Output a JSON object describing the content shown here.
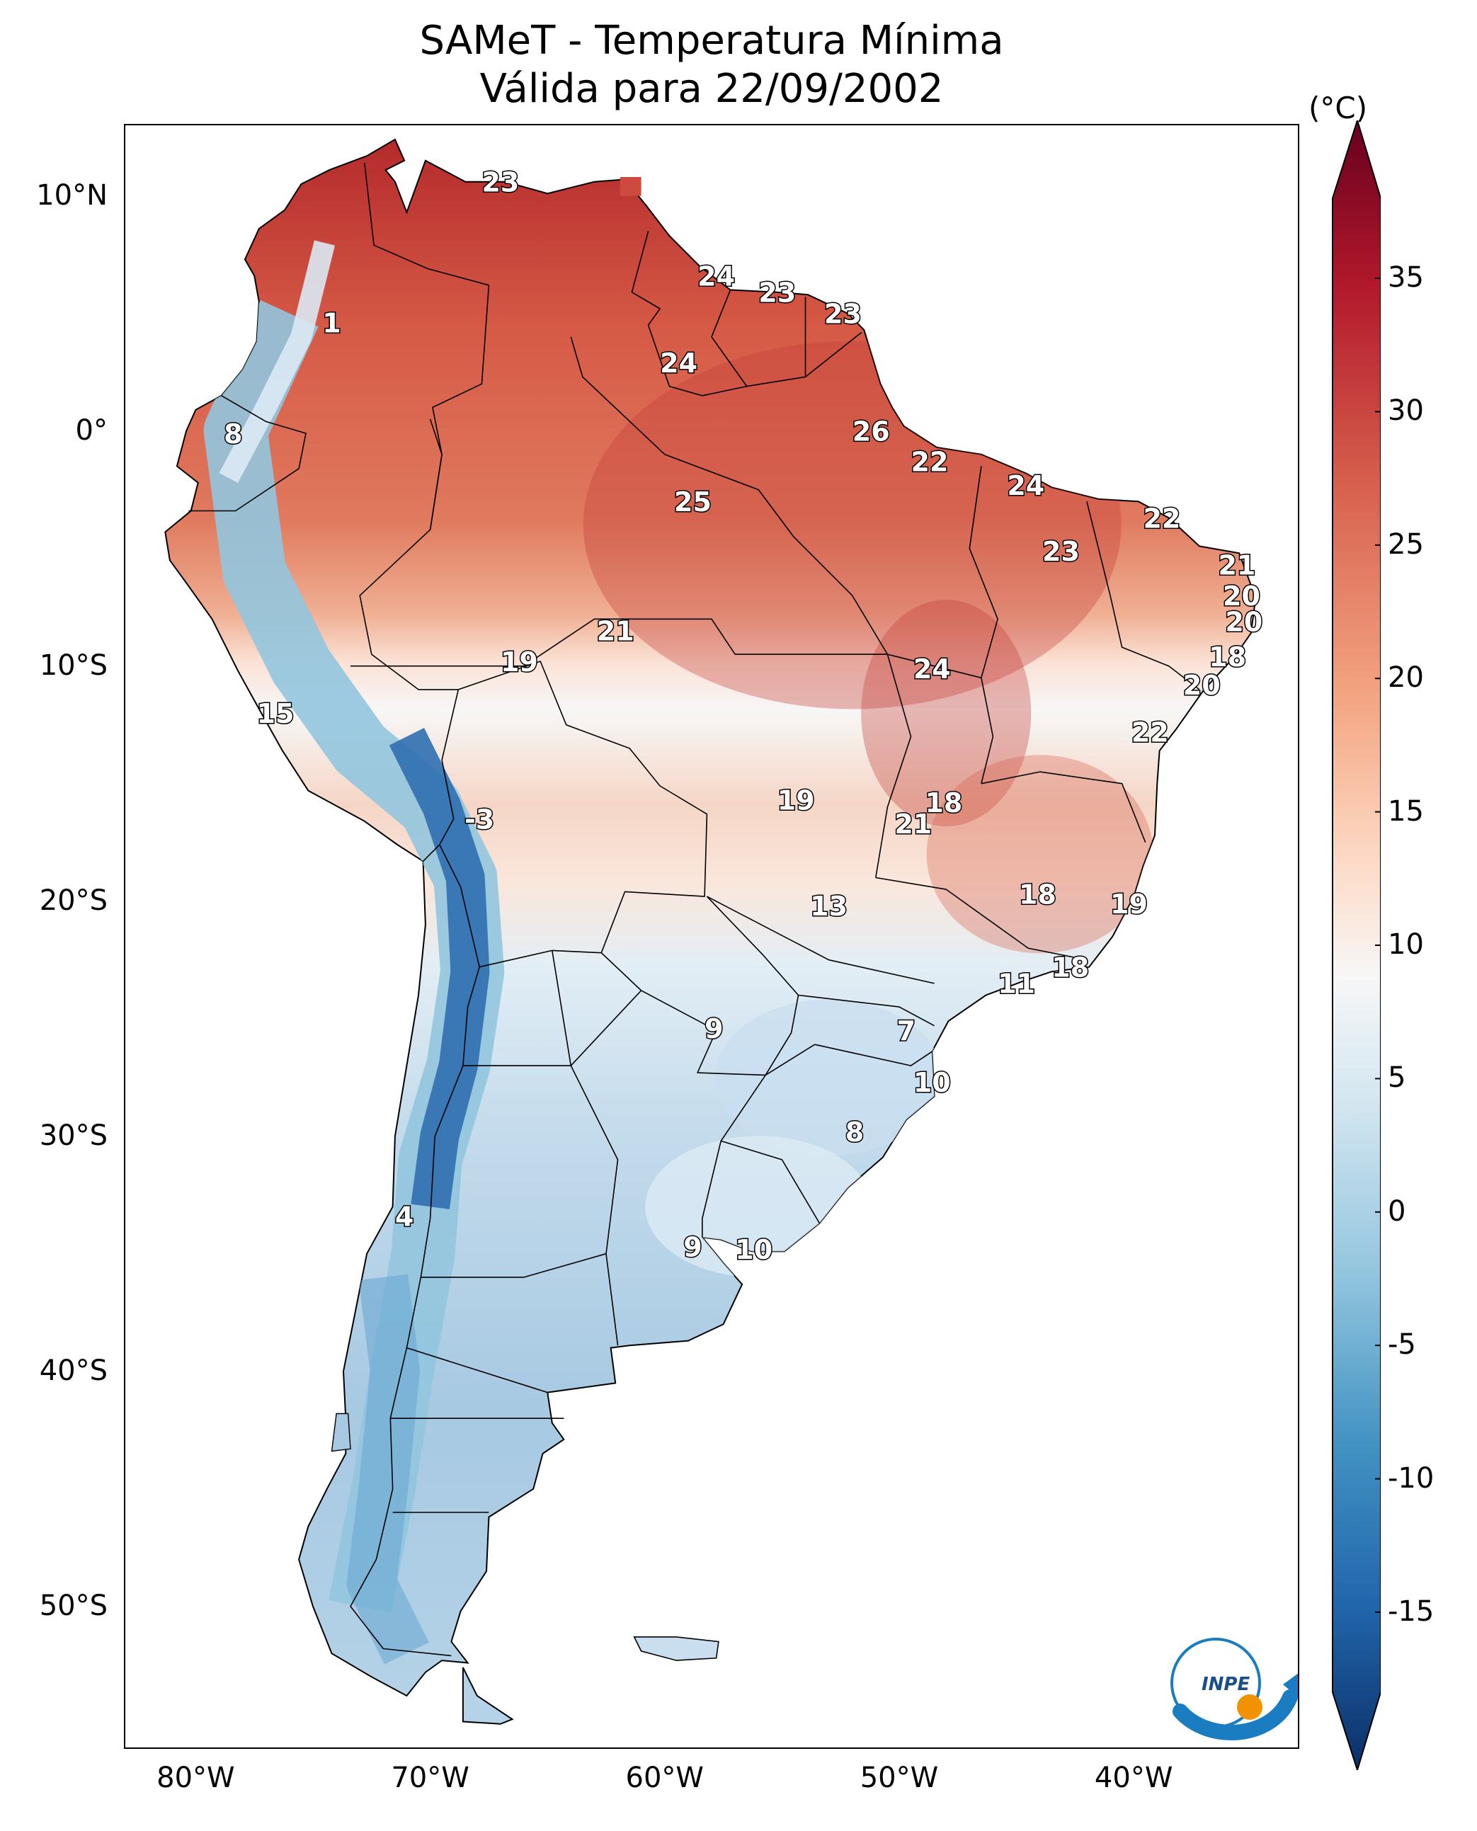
{
  "title": "SAMeT - Temperatura Mínima",
  "subtitle": "Válida para 22/09/2002",
  "axes": {
    "lat_ticks": [
      "10°N",
      "0°",
      "10°S",
      "20°S",
      "30°S",
      "40°S",
      "50°S"
    ],
    "lon_ticks": [
      "80°W",
      "70°W",
      "60°W",
      "50°W",
      "40°W"
    ],
    "lat_range": [
      -56,
      13
    ],
    "lon_range": [
      -83,
      -33
    ]
  },
  "colorbar": {
    "unit": "(°C)",
    "ticks": [
      "35",
      "30",
      "25",
      "20",
      "15",
      "10",
      "5",
      "0",
      "-5",
      "-10",
      "-15"
    ],
    "range": [
      -15,
      35
    ],
    "colormap": "RdBu_r",
    "colors": [
      "#0b2f66",
      "#2166ac",
      "#4393c3",
      "#92c5de",
      "#d1e5f0",
      "#f7f7f7",
      "#fddbc7",
      "#f4a582",
      "#d6604d",
      "#b2182b",
      "#67001f"
    ]
  },
  "station_labels": [
    {
      "text": "23",
      "lon": -67.0,
      "lat": 10.5
    },
    {
      "text": "24",
      "lon": -57.8,
      "lat": 6.5
    },
    {
      "text": "23",
      "lon": -55.2,
      "lat": 5.8
    },
    {
      "text": "23",
      "lon": -52.4,
      "lat": 4.9
    },
    {
      "text": "1",
      "lon": -74.2,
      "lat": 4.5
    },
    {
      "text": "24",
      "lon": -59.4,
      "lat": 2.8
    },
    {
      "text": "8",
      "lon": -78.4,
      "lat": -0.2
    },
    {
      "text": "26",
      "lon": -51.2,
      "lat": -0.1
    },
    {
      "text": "22",
      "lon": -48.7,
      "lat": -1.4
    },
    {
      "text": "25",
      "lon": -58.8,
      "lat": -3.1
    },
    {
      "text": "24",
      "lon": -44.6,
      "lat": -2.4
    },
    {
      "text": "22",
      "lon": -38.8,
      "lat": -3.8
    },
    {
      "text": "23",
      "lon": -43.1,
      "lat": -5.2
    },
    {
      "text": "21",
      "lon": -35.6,
      "lat": -5.8
    },
    {
      "text": "20",
      "lon": -35.4,
      "lat": -7.1
    },
    {
      "text": "20",
      "lon": -35.3,
      "lat": -8.2
    },
    {
      "text": "21",
      "lon": -62.1,
      "lat": -8.6
    },
    {
      "text": "19",
      "lon": -66.2,
      "lat": -9.9
    },
    {
      "text": "18",
      "lon": -36.0,
      "lat": -9.7
    },
    {
      "text": "24",
      "lon": -48.6,
      "lat": -10.2
    },
    {
      "text": "20",
      "lon": -37.1,
      "lat": -10.9
    },
    {
      "text": "15",
      "lon": -76.6,
      "lat": -12.1
    },
    {
      "text": "22",
      "lon": -39.3,
      "lat": -12.9
    },
    {
      "text": "19",
      "lon": -54.4,
      "lat": -15.8
    },
    {
      "text": "18",
      "lon": -48.1,
      "lat": -15.9
    },
    {
      "text": "21",
      "lon": -49.4,
      "lat": -16.8
    },
    {
      "text": "-3",
      "lon": -67.9,
      "lat": -16.6
    },
    {
      "text": "18",
      "lon": -44.1,
      "lat": -19.8
    },
    {
      "text": "13",
      "lon": -53.0,
      "lat": -20.3
    },
    {
      "text": "19",
      "lon": -40.2,
      "lat": -20.2
    },
    {
      "text": "18",
      "lon": -42.7,
      "lat": -22.9
    },
    {
      "text": "11",
      "lon": -45.0,
      "lat": -23.6
    },
    {
      "text": "9",
      "lon": -57.9,
      "lat": -25.5
    },
    {
      "text": "7",
      "lon": -49.7,
      "lat": -25.6
    },
    {
      "text": "10",
      "lon": -48.6,
      "lat": -27.8
    },
    {
      "text": "8",
      "lon": -51.9,
      "lat": -29.9
    },
    {
      "text": "4",
      "lon": -71.1,
      "lat": -33.5
    },
    {
      "text": "9",
      "lon": -58.8,
      "lat": -34.8
    },
    {
      "text": "10",
      "lon": -56.2,
      "lat": -34.9
    }
  ],
  "logo": {
    "text": "INPE"
  }
}
